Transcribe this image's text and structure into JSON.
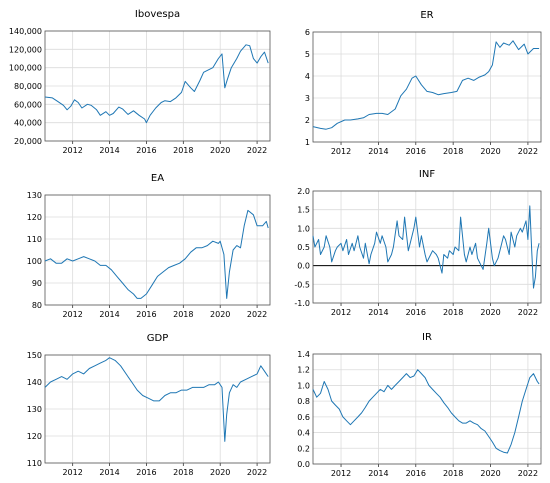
{
  "chart_data": [
    {
      "type": "line",
      "title": "Ibovespa",
      "xlabel": "",
      "ylabel": "",
      "x_ticks": [
        "2012",
        "2014",
        "2016",
        "2018",
        "2020",
        "2022"
      ],
      "y_ticks": [
        "20,000",
        "40,000",
        "60,000",
        "80,000",
        "100,000",
        "120,000",
        "140,000"
      ],
      "ylim": [
        20000,
        140000
      ],
      "grid": true,
      "legend": "none",
      "color": "#1f77b4",
      "series": [
        {
          "x": [
            2010.5,
            2010.9,
            2011.2,
            2011.5,
            2011.7,
            2011.9,
            2012.1,
            2012.3,
            2012.5,
            2012.8,
            2013.0,
            2013.3,
            2013.5,
            2013.8,
            2014.0,
            2014.2,
            2014.5,
            2014.7,
            2015.0,
            2015.3,
            2015.6,
            2015.9,
            2016.0,
            2016.2,
            2016.5,
            2016.8,
            2017.0,
            2017.3,
            2017.6,
            2017.9,
            2018.1,
            2018.4,
            2018.6,
            2018.9,
            2019.1,
            2019.3,
            2019.6,
            2019.9,
            2020.1,
            2020.25,
            2020.4,
            2020.6,
            2020.9,
            2021.1,
            2021.4,
            2021.6,
            2021.8,
            2022.0,
            2022.2,
            2022.4,
            2022.6
          ],
          "y": [
            68000,
            67000,
            63000,
            59000,
            54000,
            58000,
            65000,
            62000,
            56000,
            60000,
            59000,
            54000,
            48000,
            52000,
            48000,
            50000,
            57000,
            55000,
            49000,
            53000,
            48000,
            44000,
            40000,
            48000,
            56000,
            62000,
            64000,
            63000,
            67000,
            73000,
            85000,
            78000,
            74000,
            86000,
            95000,
            97000,
            100000,
            110000,
            115000,
            78000,
            88000,
            100000,
            110000,
            118000,
            125000,
            124000,
            110000,
            105000,
            112000,
            117000,
            105000
          ]
        }
      ]
    },
    {
      "type": "line",
      "title": "ER",
      "xlabel": "",
      "ylabel": "",
      "x_ticks": [
        "2012",
        "2014",
        "2016",
        "2018",
        "2020",
        "2022"
      ],
      "y_ticks": [
        "1",
        "2",
        "3",
        "4",
        "5",
        "6"
      ],
      "ylim": [
        1,
        6
      ],
      "grid": true,
      "legend": "none",
      "color": "#1f77b4",
      "series": [
        {
          "x": [
            2010.5,
            2010.9,
            2011.2,
            2011.5,
            2011.8,
            2012.2,
            2012.5,
            2012.9,
            2013.2,
            2013.5,
            2013.9,
            2014.2,
            2014.5,
            2014.9,
            2015.2,
            2015.5,
            2015.8,
            2016.0,
            2016.3,
            2016.6,
            2016.9,
            2017.2,
            2017.5,
            2017.9,
            2018.2,
            2018.5,
            2018.8,
            2019.1,
            2019.4,
            2019.7,
            2019.9,
            2020.1,
            2020.3,
            2020.5,
            2020.7,
            2021.0,
            2021.2,
            2021.5,
            2021.8,
            2022.0,
            2022.3,
            2022.6
          ],
          "y": [
            1.7,
            1.62,
            1.58,
            1.65,
            1.85,
            2.0,
            2.0,
            2.05,
            2.1,
            2.25,
            2.3,
            2.3,
            2.25,
            2.5,
            3.1,
            3.4,
            3.9,
            4.0,
            3.6,
            3.3,
            3.25,
            3.15,
            3.2,
            3.25,
            3.3,
            3.8,
            3.9,
            3.8,
            3.95,
            4.05,
            4.2,
            4.5,
            5.55,
            5.3,
            5.5,
            5.4,
            5.6,
            5.2,
            5.45,
            5.0,
            5.25,
            5.25
          ]
        }
      ]
    },
    {
      "type": "line",
      "title": "EA",
      "xlabel": "",
      "ylabel": "",
      "x_ticks": [
        "2012",
        "2014",
        "2016",
        "2018",
        "2020",
        "2022"
      ],
      "y_ticks": [
        "80",
        "90",
        "100",
        "110",
        "120",
        "130"
      ],
      "ylim": [
        80,
        130
      ],
      "grid": true,
      "legend": "none",
      "color": "#1f77b4",
      "series": [
        {
          "x": [
            2010.5,
            2010.8,
            2011.1,
            2011.4,
            2011.7,
            2012.0,
            2012.3,
            2012.6,
            2012.9,
            2013.2,
            2013.5,
            2013.8,
            2014.1,
            2014.4,
            2014.7,
            2015.0,
            2015.3,
            2015.5,
            2015.7,
            2016.0,
            2016.3,
            2016.6,
            2016.9,
            2017.2,
            2017.5,
            2017.8,
            2018.1,
            2018.4,
            2018.7,
            2019.0,
            2019.3,
            2019.6,
            2019.9,
            2020.0,
            2020.2,
            2020.35,
            2020.5,
            2020.7,
            2020.9,
            2021.1,
            2021.3,
            2021.5,
            2021.8,
            2022.0,
            2022.3,
            2022.5,
            2022.6
          ],
          "y": [
            100,
            101,
            99,
            99,
            101,
            100,
            101,
            102,
            101,
            100,
            98,
            98,
            96,
            93,
            90,
            87,
            85,
            83,
            83,
            85,
            89,
            93,
            95,
            97,
            98,
            99,
            101,
            104,
            106,
            106,
            107,
            109,
            108,
            109,
            103,
            83,
            95,
            105,
            107,
            106,
            116,
            123,
            121,
            116,
            116,
            118,
            115
          ]
        }
      ]
    },
    {
      "type": "line",
      "title": "INF",
      "xlabel": "",
      "ylabel": "",
      "x_ticks": [
        "2012",
        "2014",
        "2016",
        "2018",
        "2020",
        "2022"
      ],
      "y_ticks": [
        "-1.0",
        "-0.5",
        "0.0",
        "0.5",
        "1.0",
        "1.5",
        "2.0"
      ],
      "ylim": [
        -1.0,
        2.0
      ],
      "grid": true,
      "legend": "none",
      "color": "#1f77b4",
      "series": [
        {
          "x": [
            2010.5,
            2010.6,
            2010.8,
            2010.9,
            2011.1,
            2011.2,
            2011.4,
            2011.5,
            2011.7,
            2011.8,
            2012.0,
            2012.1,
            2012.3,
            2012.4,
            2012.6,
            2012.7,
            2012.9,
            2013.0,
            2013.2,
            2013.3,
            2013.5,
            2013.6,
            2013.8,
            2013.9,
            2014.1,
            2014.2,
            2014.4,
            2014.5,
            2014.7,
            2014.8,
            2015.0,
            2015.1,
            2015.3,
            2015.4,
            2015.6,
            2015.7,
            2015.9,
            2016.0,
            2016.2,
            2016.3,
            2016.5,
            2016.6,
            2016.8,
            2016.9,
            2017.1,
            2017.2,
            2017.4,
            2017.5,
            2017.7,
            2017.8,
            2018.0,
            2018.1,
            2018.3,
            2018.4,
            2018.6,
            2018.7,
            2018.9,
            2019.0,
            2019.2,
            2019.3,
            2019.5,
            2019.6,
            2019.8,
            2019.9,
            2020.1,
            2020.2,
            2020.4,
            2020.5,
            2020.7,
            2020.8,
            2021.0,
            2021.1,
            2021.3,
            2021.4,
            2021.6,
            2021.7,
            2021.9,
            2022.0,
            2022.1,
            2022.2,
            2022.3,
            2022.4,
            2022.5,
            2022.6
          ],
          "y": [
            0.8,
            0.5,
            0.7,
            0.3,
            0.5,
            0.8,
            0.5,
            0.1,
            0.4,
            0.5,
            0.6,
            0.4,
            0.7,
            0.3,
            0.6,
            0.4,
            0.8,
            0.5,
            0.2,
            0.6,
            0.05,
            0.3,
            0.6,
            0.9,
            0.6,
            0.8,
            0.5,
            0.1,
            0.3,
            0.5,
            1.2,
            0.8,
            0.7,
            1.3,
            0.4,
            0.6,
            1.0,
            1.3,
            0.5,
            0.8,
            0.3,
            0.1,
            0.3,
            0.4,
            0.3,
            0.2,
            -0.2,
            0.3,
            0.2,
            0.4,
            0.3,
            0.5,
            0.4,
            1.3,
            0.3,
            0.1,
            0.5,
            0.3,
            0.6,
            0.2,
            0.0,
            -0.1,
            0.6,
            1.0,
            0.2,
            0.0,
            0.2,
            0.4,
            0.8,
            0.7,
            0.3,
            0.9,
            0.5,
            0.8,
            1.0,
            0.9,
            1.2,
            0.7,
            1.6,
            0.4,
            -0.6,
            -0.3,
            0.4,
            0.6
          ]
        }
      ]
    },
    {
      "type": "line",
      "title": "GDP",
      "xlabel": "",
      "ylabel": "",
      "x_ticks": [
        "2012",
        "2014",
        "2016",
        "2018",
        "2020",
        "2022"
      ],
      "y_ticks": [
        "110",
        "120",
        "130",
        "140",
        "150"
      ],
      "ylim": [
        110,
        150
      ],
      "grid": true,
      "legend": "none",
      "color": "#1f77b4",
      "series": [
        {
          "x": [
            2010.5,
            2010.8,
            2011.1,
            2011.4,
            2011.7,
            2012.0,
            2012.3,
            2012.6,
            2012.9,
            2013.2,
            2013.5,
            2013.8,
            2014.0,
            2014.3,
            2014.6,
            2014.9,
            2015.2,
            2015.5,
            2015.8,
            2016.1,
            2016.4,
            2016.7,
            2017.0,
            2017.3,
            2017.6,
            2017.9,
            2018.2,
            2018.5,
            2018.8,
            2019.1,
            2019.4,
            2019.7,
            2019.9,
            2020.1,
            2020.25,
            2020.35,
            2020.5,
            2020.7,
            2020.9,
            2021.1,
            2021.4,
            2021.7,
            2022.0,
            2022.2,
            2022.4,
            2022.6
          ],
          "y": [
            138,
            140,
            141,
            142,
            141,
            143,
            144,
            143,
            145,
            146,
            147,
            148,
            149,
            148,
            146,
            143,
            140,
            137,
            135,
            134,
            133,
            133,
            135,
            136,
            136,
            137,
            137,
            138,
            138,
            138,
            139,
            139,
            140,
            138,
            118,
            128,
            136,
            139,
            138,
            140,
            141,
            142,
            143,
            146,
            144,
            142
          ]
        }
      ]
    },
    {
      "type": "line",
      "title": "IR",
      "xlabel": "",
      "ylabel": "",
      "x_ticks": [
        "2012",
        "2014",
        "2016",
        "2018",
        "2020",
        "2022"
      ],
      "y_ticks": [
        "0.0",
        "0.2",
        "0.4",
        "0.6",
        "0.8",
        "1.0",
        "1.2",
        "1.4"
      ],
      "ylim": [
        0.0,
        1.4
      ],
      "grid": true,
      "legend": "none",
      "color": "#1f77b4",
      "series": [
        {
          "x": [
            2010.5,
            2010.7,
            2010.9,
            2011.1,
            2011.3,
            2011.5,
            2011.7,
            2011.9,
            2012.1,
            2012.3,
            2012.5,
            2012.7,
            2012.9,
            2013.1,
            2013.3,
            2013.5,
            2013.7,
            2013.9,
            2014.1,
            2014.3,
            2014.5,
            2014.7,
            2014.9,
            2015.1,
            2015.3,
            2015.5,
            2015.7,
            2015.9,
            2016.1,
            2016.3,
            2016.5,
            2016.7,
            2016.9,
            2017.1,
            2017.3,
            2017.5,
            2017.7,
            2017.9,
            2018.1,
            2018.3,
            2018.5,
            2018.7,
            2018.9,
            2019.1,
            2019.3,
            2019.5,
            2019.7,
            2019.9,
            2020.1,
            2020.3,
            2020.5,
            2020.7,
            2020.9,
            2021.1,
            2021.3,
            2021.5,
            2021.7,
            2021.9,
            2022.1,
            2022.3,
            2022.5,
            2022.6
          ],
          "y": [
            0.95,
            0.85,
            0.9,
            1.05,
            0.95,
            0.8,
            0.75,
            0.7,
            0.6,
            0.55,
            0.5,
            0.55,
            0.6,
            0.65,
            0.72,
            0.8,
            0.85,
            0.9,
            0.95,
            0.92,
            1.0,
            0.95,
            1.0,
            1.05,
            1.1,
            1.15,
            1.1,
            1.12,
            1.2,
            1.15,
            1.1,
            1.0,
            0.95,
            0.9,
            0.85,
            0.78,
            0.72,
            0.65,
            0.6,
            0.55,
            0.52,
            0.52,
            0.55,
            0.52,
            0.5,
            0.45,
            0.42,
            0.35,
            0.28,
            0.2,
            0.17,
            0.15,
            0.14,
            0.25,
            0.4,
            0.6,
            0.8,
            0.95,
            1.1,
            1.15,
            1.05,
            1.02
          ]
        }
      ]
    }
  ]
}
